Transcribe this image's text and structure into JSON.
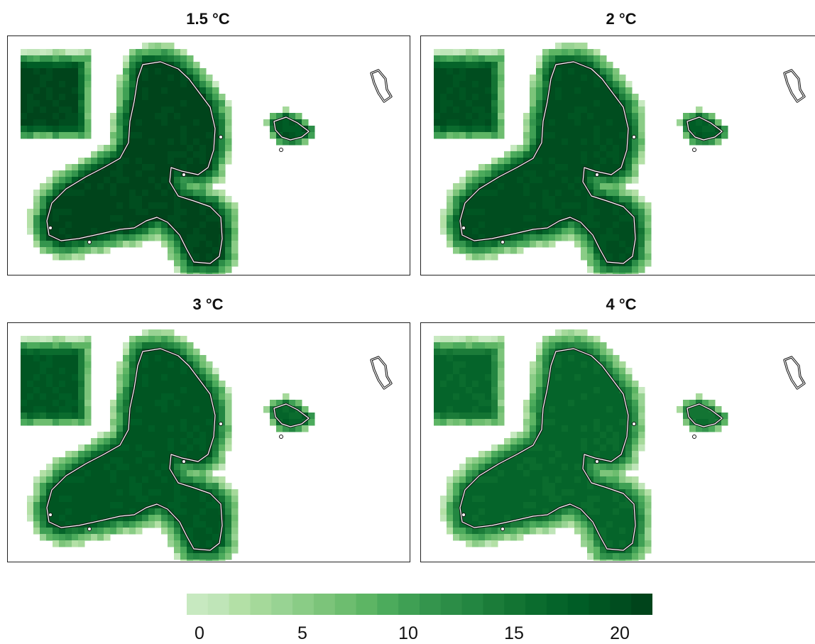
{
  "panels": [
    {
      "title": "1.5 °C",
      "level": 21
    },
    {
      "title": "2 °C",
      "level": 20
    },
    {
      "title": "3 °C",
      "level": 19
    },
    {
      "title": "4 °C",
      "level": 17
    }
  ],
  "colorbar": {
    "min": 0,
    "max": 22,
    "steps": 22,
    "tick_labels": [
      "0",
      "5",
      "10",
      "15",
      "20"
    ],
    "colors": [
      "#c7e9c0",
      "#bfe5b8",
      "#b3e0a6",
      "#a5d99a",
      "#98d393",
      "#8acc86",
      "#7cc47a",
      "#6dbd6f",
      "#5db564",
      "#4cab5c",
      "#3fa054",
      "#34954d",
      "#2c8d47",
      "#238641",
      "#1b7c39",
      "#137433",
      "#0b6c2e",
      "#05642a",
      "#005d26",
      "#005522",
      "#004d1f",
      "#00441b"
    ]
  }
}
